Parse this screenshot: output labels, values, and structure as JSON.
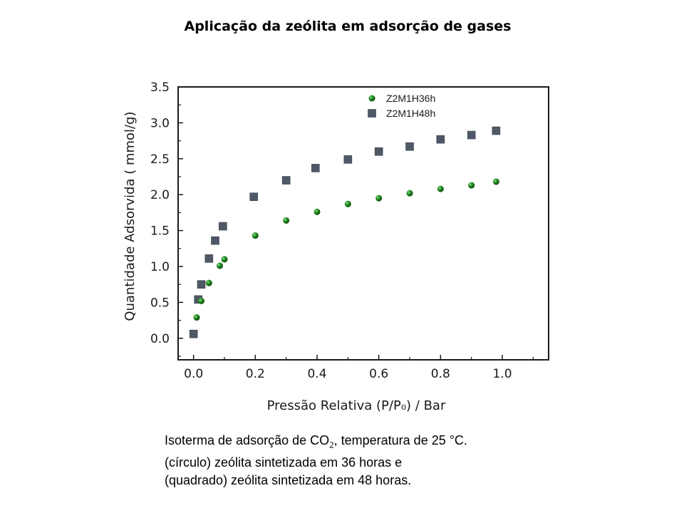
{
  "title": "Aplicação da zeólita em adsorção de gases",
  "chart_data": {
    "type": "scatter",
    "xlabel": "Pressão Relativa (P/P₀) / Bar",
    "ylabel": "Quantidade Adsorvida ( mmol/g)",
    "xlim": [
      -0.05,
      1.15
    ],
    "ylim": [
      -0.3,
      3.5
    ],
    "xticks": [
      "0.0",
      "0.2",
      "0.4",
      "0.6",
      "0.8",
      "1.0"
    ],
    "yticks": [
      "0.0",
      "0.5",
      "1.0",
      "1.5",
      "2.0",
      "2.5",
      "3.0",
      "3.5"
    ],
    "legend_position": "top-right",
    "series": [
      {
        "name": "Z2M1H36h",
        "marker": "circle",
        "color": "#1e8a1e",
        "x": [
          0.01,
          0.025,
          0.05,
          0.085,
          0.1,
          0.2,
          0.3,
          0.4,
          0.5,
          0.6,
          0.7,
          0.8,
          0.9,
          0.98
        ],
        "y": [
          0.29,
          0.52,
          0.77,
          1.01,
          1.1,
          1.43,
          1.64,
          1.76,
          1.87,
          1.95,
          2.02,
          2.08,
          2.13,
          2.18
        ]
      },
      {
        "name": "Z2M1H48h",
        "marker": "square",
        "color": "#4f5866",
        "x": [
          0.0,
          0.015,
          0.025,
          0.05,
          0.07,
          0.095,
          0.195,
          0.3,
          0.395,
          0.5,
          0.6,
          0.7,
          0.8,
          0.9,
          0.98
        ],
        "y": [
          0.06,
          0.54,
          0.75,
          1.11,
          1.36,
          1.56,
          1.97,
          2.2,
          2.37,
          2.49,
          2.6,
          2.67,
          2.77,
          2.83,
          2.89
        ]
      }
    ]
  },
  "caption": {
    "line1_prefix": "Isoterma de adsorção de CO",
    "line1_sub": "2",
    "line1_suffix": ", temperatura de 25 °C.",
    "line2": "(círculo) zeólita sintetizada em 36 horas e",
    "line3": "(quadrado) zeólita sintetizada em 48 horas."
  }
}
